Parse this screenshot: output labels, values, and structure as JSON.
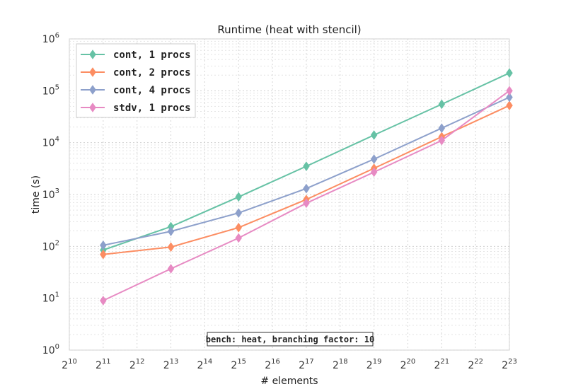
{
  "chart_data": {
    "type": "line",
    "title": "Runtime (heat with stencil)",
    "xlabel": "# elements",
    "ylabel": "time (s)",
    "x_scale": "log2",
    "y_scale": "log10",
    "xlim": [
      1024,
      8388608
    ],
    "ylim": [
      1,
      1000000
    ],
    "x_tick_exponents": [
      10,
      11,
      12,
      13,
      14,
      15,
      16,
      17,
      18,
      19,
      20,
      21,
      22,
      23
    ],
    "y_tick_exponents": [
      0,
      1,
      2,
      3,
      4,
      5,
      6
    ],
    "x": [
      2048,
      8192,
      32768,
      131072,
      524288,
      2097152,
      8388608
    ],
    "series": [
      {
        "name": "cont, 1 procs",
        "color": "#66c2a5",
        "values": [
          85,
          240,
          900,
          3500,
          14000,
          55000,
          220000
        ]
      },
      {
        "name": "cont, 2 procs",
        "color": "#fc8d62",
        "values": [
          70,
          97,
          230,
          800,
          3200,
          13000,
          52000
        ]
      },
      {
        "name": "cont, 4 procs",
        "color": "#8da0cb",
        "values": [
          105,
          195,
          440,
          1300,
          4800,
          19000,
          75000
        ]
      },
      {
        "name": "stdv, 1 procs",
        "color": "#e78ac3",
        "values": [
          9,
          37,
          145,
          680,
          2700,
          11000,
          100000
        ]
      }
    ],
    "grid": true,
    "legend_position": "top-left",
    "annotation": "bench: heat, branching factor: 10"
  }
}
